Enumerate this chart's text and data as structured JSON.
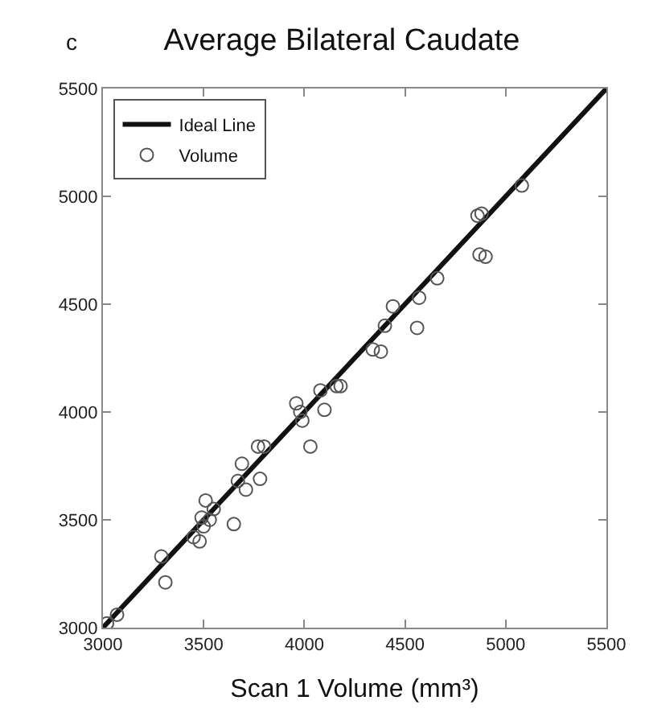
{
  "chart_data": {
    "type": "scatter",
    "title": "Average Bilateral Caudate",
    "xlabel": "Scan 1 Volume (mm³)",
    "annotations": [
      "c"
    ],
    "xlim": [
      3000,
      5500
    ],
    "ylim": [
      3000,
      5500
    ],
    "xticks": [
      3000,
      3500,
      4000,
      4500,
      5000,
      5500
    ],
    "yticks": [
      3000,
      3500,
      4000,
      4500,
      5000,
      5500
    ],
    "legend": "top left",
    "series": [
      {
        "name": "Ideal Line",
        "type": "line",
        "color": "#111111",
        "marker": "none",
        "line_style": "solid",
        "x": [
          3000,
          5500
        ],
        "values": [
          3000,
          5500
        ]
      },
      {
        "name": "Volume",
        "color": "#555555",
        "marker": "circle",
        "x": [
          3020,
          3070,
          3290,
          3310,
          3450,
          3480,
          3490,
          3500,
          3510,
          3530,
          3550,
          3650,
          3670,
          3690,
          3710,
          3770,
          3780,
          3800,
          3960,
          3980,
          3990,
          4030,
          4080,
          4100,
          4160,
          4180,
          4340,
          4380,
          4400,
          4440,
          4560,
          4570,
          4660,
          4860,
          4880,
          4870,
          4900,
          5080
        ],
        "values": [
          3020,
          3060,
          3330,
          3210,
          3420,
          3400,
          3510,
          3470,
          3590,
          3500,
          3550,
          3480,
          3680,
          3760,
          3640,
          3840,
          3690,
          3840,
          4040,
          4000,
          3960,
          3840,
          4100,
          4010,
          4120,
          4120,
          4290,
          4280,
          4400,
          4490,
          4390,
          4530,
          4620,
          4910,
          4920,
          4730,
          4720,
          5050
        ]
      }
    ]
  }
}
